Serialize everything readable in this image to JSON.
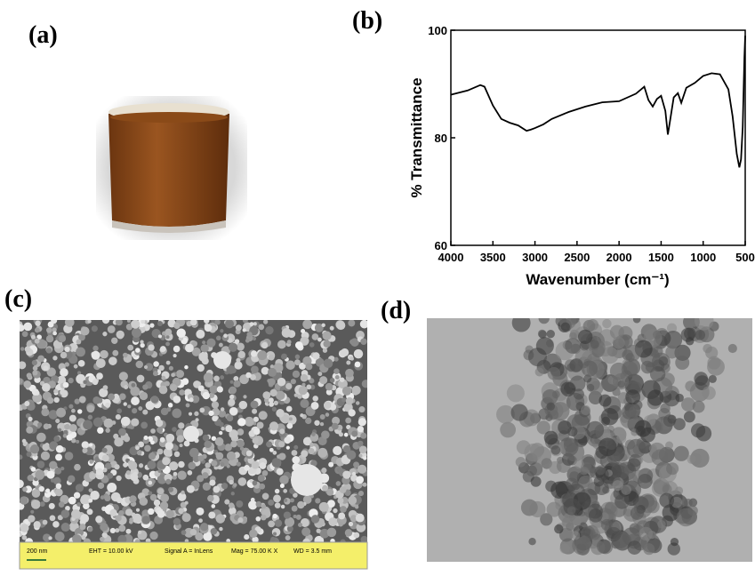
{
  "panels": {
    "a": "(a)",
    "b": "(b)",
    "c": "(c)",
    "d": "(d)"
  },
  "sem_bar": {
    "scale": "200 nm",
    "eht": "EHT = 10.00 kV",
    "signal": "Signal A = InLens",
    "mag": "Mag = 75.00 K X",
    "wd": "WD = 3.5 mm"
  },
  "chart_data": {
    "type": "line",
    "x_label": "Wavenumber (cm⁻¹)",
    "y_label": "% Transmittance",
    "xlim": [
      4000,
      500
    ],
    "ylim": [
      60,
      100
    ],
    "xticks": [
      4000,
      3500,
      3000,
      2500,
      2000,
      1500,
      1000,
      500
    ],
    "yticks": [
      60,
      80,
      100
    ],
    "x": [
      4000,
      3800,
      3650,
      3600,
      3500,
      3400,
      3300,
      3200,
      3100,
      3050,
      3000,
      2900,
      2800,
      2600,
      2400,
      2200,
      2000,
      1800,
      1700,
      1650,
      1600,
      1550,
      1500,
      1450,
      1420,
      1390,
      1350,
      1300,
      1260,
      1200,
      1100,
      1000,
      900,
      800,
      700,
      650,
      600,
      570,
      550,
      530,
      510,
      500
    ],
    "series": [
      {
        "color": "#000000",
        "values": [
          88,
          88.8,
          89.8,
          89.5,
          86,
          83.5,
          82.8,
          82.3,
          81.3,
          81.5,
          81.8,
          82.5,
          83.5,
          84.8,
          85.8,
          86.6,
          86.8,
          88.2,
          89.5,
          87,
          85.8,
          87.2,
          87.8,
          85,
          80.6,
          83.5,
          87.5,
          88.3,
          86.5,
          89.3,
          90.2,
          91.5,
          92,
          91.8,
          89,
          84,
          77,
          74.5,
          76,
          82,
          95,
          99
        ]
      }
    ]
  }
}
